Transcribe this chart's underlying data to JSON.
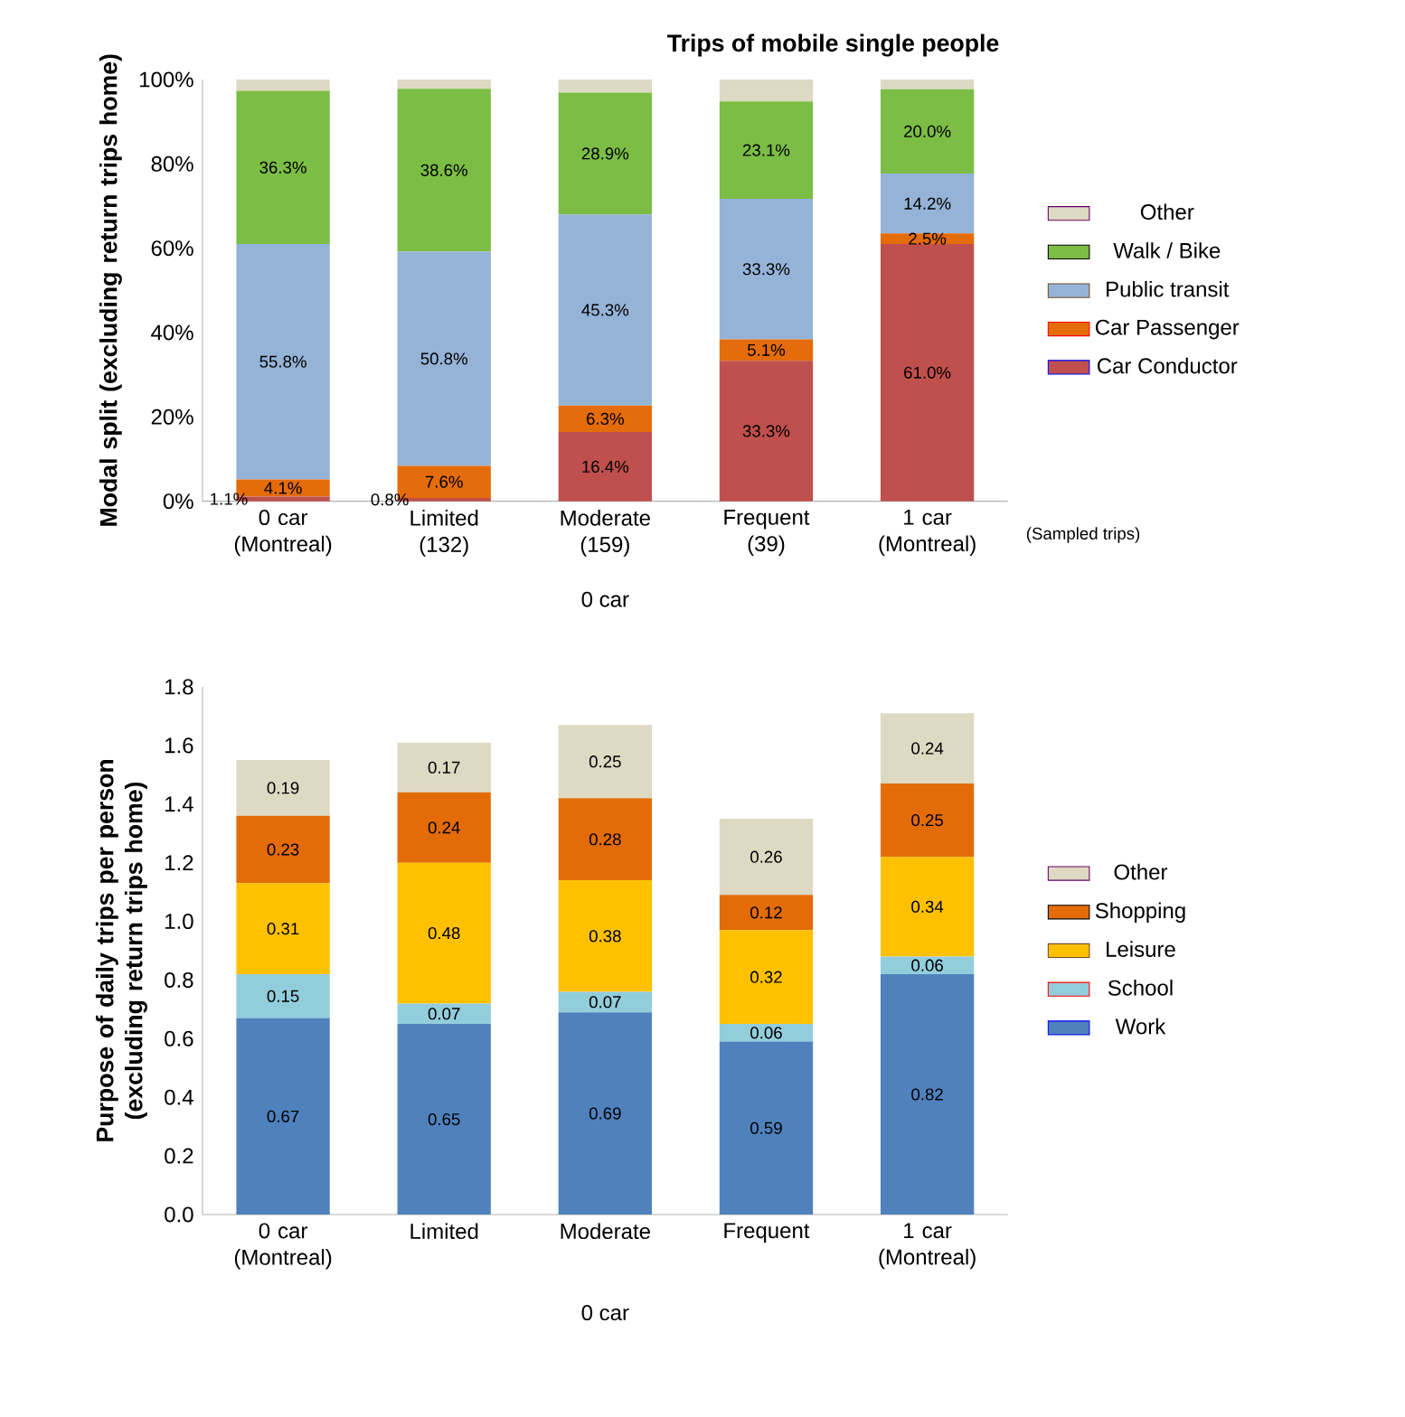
{
  "chart_data": [
    {
      "type": "bar",
      "stacked": true,
      "title": "Trips of mobile single people",
      "ylabel": "Modal split (excluding return trips home)",
      "categories": [
        "0 car (Montreal)",
        "Limited (132)",
        "Moderate (159)",
        "Frequent (39)",
        "1 car (Montreal)"
      ],
      "annotations": [
        "0 car",
        "(Sampled trips)"
      ],
      "ylim": [
        0,
        100
      ],
      "yticks": [
        {
          "value": 0,
          "label": "0%"
        },
        {
          "value": 20,
          "label": "20%"
        },
        {
          "value": 40,
          "label": "40%"
        },
        {
          "value": 60,
          "label": "60%"
        },
        {
          "value": 80,
          "label": "80%"
        },
        {
          "value": 100,
          "label": "100%"
        }
      ],
      "legend": "right",
      "grid": false,
      "series": [
        {
          "name": "Car Conductor",
          "color": "#c0504d",
          "values": [
            1.1,
            0.8,
            16.4,
            33.3,
            61.0
          ],
          "value_labels": [
            "1.1%",
            "0.8%",
            "16.4%",
            "33.3%",
            "61.0%"
          ]
        },
        {
          "name": "Car Passenger",
          "color": "#e46c0a",
          "values": [
            4.1,
            7.6,
            6.3,
            5.1,
            2.5
          ],
          "value_labels": [
            "4.1%",
            "7.6%",
            "6.3%",
            "5.1%",
            "2.5%"
          ]
        },
        {
          "name": "Public transit",
          "color": "#95b3d7",
          "values": [
            55.8,
            50.8,
            45.3,
            33.3,
            14.2
          ],
          "value_labels": [
            "55.8%",
            "50.8%",
            "45.3%",
            "33.3%",
            "14.2%"
          ]
        },
        {
          "name": "Walk / Bike",
          "color": "#7cbd45",
          "values": [
            36.3,
            38.6,
            28.9,
            23.1,
            20.0
          ],
          "value_labels": [
            "36.3%",
            "38.6%",
            "28.9%",
            "23.1%",
            "20.0%"
          ]
        },
        {
          "name": "Other",
          "color": "#ddd9c3",
          "values": [
            2.7,
            2.2,
            3.1,
            5.2,
            2.3
          ]
        }
      ]
    },
    {
      "type": "bar",
      "stacked": true,
      "ylabel": "Purpose of daily trips per person (excluding return trips home)",
      "categories": [
        "0 car (Montreal)",
        "Limited",
        "Moderate",
        "Frequent",
        "1 car (Montreal)"
      ],
      "annotations": [
        "0 car"
      ],
      "ylim": [
        0,
        1.8
      ],
      "yticks": [
        {
          "value": 0,
          "label": "0.0"
        },
        {
          "value": 0.2,
          "label": "0.2"
        },
        {
          "value": 0.4,
          "label": "0.4"
        },
        {
          "value": 0.6,
          "label": "0.6"
        },
        {
          "value": 0.8,
          "label": "0.8"
        },
        {
          "value": 1.0,
          "label": "1.0"
        },
        {
          "value": 1.2,
          "label": "1.2"
        },
        {
          "value": 1.4,
          "label": "1.4"
        },
        {
          "value": 1.6,
          "label": "1.6"
        },
        {
          "value": 1.8,
          "label": "1.8"
        }
      ],
      "legend": "right",
      "grid": false,
      "data_labels": true,
      "series": [
        {
          "name": "Work",
          "color": "#4f81bd",
          "values": [
            0.67,
            0.65,
            0.69,
            0.59,
            0.82
          ]
        },
        {
          "name": "School",
          "color": "#92cddc",
          "values": [
            0.15,
            0.07,
            0.07,
            0.06,
            0.06
          ]
        },
        {
          "name": "Leisure",
          "color": "#ffc000",
          "values": [
            0.31,
            0.48,
            0.38,
            0.32,
            0.34
          ]
        },
        {
          "name": "Shopping",
          "color": "#e36c09",
          "values": [
            0.23,
            0.24,
            0.28,
            0.12,
            0.25
          ]
        },
        {
          "name": "Other",
          "color": "#ddd9c3",
          "values": [
            0.19,
            0.17,
            0.25,
            0.26,
            0.24
          ]
        }
      ]
    }
  ]
}
